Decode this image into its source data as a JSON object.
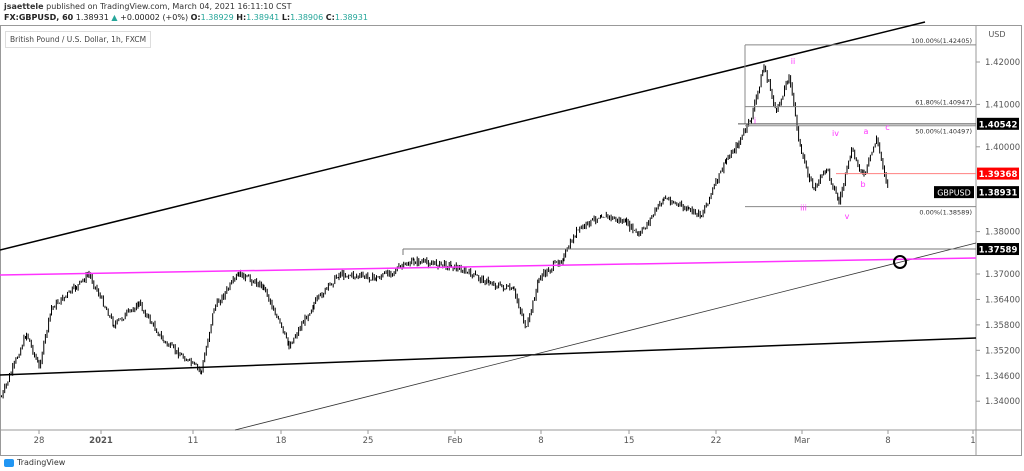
{
  "header": {
    "author": "jsaettele",
    "published": "published on TradingView.com, March 04, 2021 16:11:10 CST",
    "symbol": "FX:GBPUSD, 60",
    "last": "1.38931",
    "change": "+0.00002 (+0%)",
    "o_label": "O:",
    "o": "1.38929",
    "h_label": "H:",
    "h": "1.38941",
    "l_label": "L:",
    "l": "1.38906",
    "c_label": "C:",
    "c": "1.38931"
  },
  "legend": "British Pound / U.S. Dollar, 1h, FXCM",
  "footer": "TradingView",
  "colors": {
    "up": "#26a69a",
    "magenta": "#ff33ff",
    "red": "#ff0000",
    "line": "#000000"
  },
  "chart_data": {
    "type": "line",
    "title": "British Pound / U.S. Dollar, 1h, FXCM",
    "currency": "USD",
    "ylim": [
      1.336,
      1.4265
    ],
    "y_ticks": [
      "1.42000",
      "1.41000",
      "1.40000",
      "1.38000",
      "1.37000",
      "1.36400",
      "1.35800",
      "1.35200",
      "1.34600",
      "1.34000"
    ],
    "x_ticks": [
      "28",
      "2021",
      "11",
      "18",
      "25",
      "Feb",
      "8",
      "15",
      "22",
      "Mar",
      "8",
      "1"
    ],
    "series": [
      {
        "name": "GBPUSD",
        "points": [
          [
            "2020-12-25",
            1.341
          ],
          [
            "2020-12-27",
            1.356
          ],
          [
            "2020-12-28",
            1.348
          ],
          [
            "2020-12-29",
            1.362
          ],
          [
            "2020-12-31",
            1.367
          ],
          [
            "2021-01-01",
            1.37
          ],
          [
            "2021-01-03",
            1.358
          ],
          [
            "2021-01-05",
            1.363
          ],
          [
            "2021-01-07",
            1.354
          ],
          [
            "2021-01-10",
            1.347
          ],
          [
            "2021-01-11",
            1.362
          ],
          [
            "2021-01-13",
            1.37
          ],
          [
            "2021-01-15",
            1.367
          ],
          [
            "2021-01-17",
            1.353
          ],
          [
            "2021-01-19",
            1.363
          ],
          [
            "2021-01-21",
            1.37
          ],
          [
            "2021-01-24",
            1.369
          ],
          [
            "2021-01-27",
            1.373
          ],
          [
            "2021-01-30",
            1.372
          ],
          [
            "2021-02-02",
            1.368
          ],
          [
            "2021-02-04",
            1.366
          ],
          [
            "2021-02-05",
            1.357
          ],
          [
            "2021-02-06",
            1.369
          ],
          [
            "2021-02-08",
            1.374
          ],
          [
            "2021-02-09",
            1.38
          ],
          [
            "2021-02-11",
            1.384
          ],
          [
            "2021-02-13",
            1.382
          ],
          [
            "2021-02-14",
            1.379
          ],
          [
            "2021-02-16",
            1.388
          ],
          [
            "2021-02-18",
            1.385
          ],
          [
            "2021-02-19",
            1.384
          ],
          [
            "2021-02-21",
            1.397
          ],
          [
            "2021-02-22",
            1.401
          ],
          [
            "2021-02-23",
            1.407
          ],
          [
            "2021-02-24",
            1.419
          ],
          [
            "2021-02-25",
            1.408
          ],
          [
            "2021-02-26",
            1.417
          ],
          [
            "2021-02-27",
            1.398
          ],
          [
            "2021-02-28",
            1.39
          ],
          [
            "2021-03-01",
            1.395
          ],
          [
            "2021-03-02",
            1.387
          ],
          [
            "2021-03-03",
            1.399
          ],
          [
            "2021-03-04",
            1.393
          ],
          [
            "2021-03-05",
            1.402
          ],
          [
            "2021-03-06",
            1.38931
          ]
        ]
      }
    ],
    "fib_levels": [
      {
        "label": "100.00%(1.42405)",
        "price": 1.42405
      },
      {
        "label": "61.80%(1.40947)",
        "price": 1.40947
      },
      {
        "label": "50.00%(1.40497)",
        "price": 1.40497
      },
      {
        "label": "0.00%(1.38589)",
        "price": 1.38589
      }
    ],
    "price_labels": [
      {
        "text": "1.40542",
        "price": 1.40542,
        "bg": "#000000"
      },
      {
        "text": "1.39368",
        "price": 1.39368,
        "bg": "#ff0000"
      },
      {
        "text": "1.38931",
        "price": 1.38931,
        "bg": "#000000",
        "tag": "GBPUSD"
      },
      {
        "text": "1.37589",
        "price": 1.37589,
        "bg": "#000000"
      }
    ],
    "wave_labels": [
      {
        "text": "ii",
        "date": "2021-02-26",
        "price": 1.4195
      },
      {
        "text": "i",
        "date": "2021-02-24",
        "price": 1.4055
      },
      {
        "text": "iii",
        "date": "2021-02-27",
        "price": 1.385
      },
      {
        "text": "iv",
        "date": "2021-03-01",
        "price": 1.4025
      },
      {
        "text": "v",
        "date": "2021-03-02",
        "price": 1.383
      },
      {
        "text": "a",
        "date": "2021-03-04",
        "price": 1.403
      },
      {
        "text": "b",
        "date": "2021-03-04",
        "price": 1.3905
      },
      {
        "text": "c",
        "date": "2021-03-05",
        "price": 1.404
      }
    ]
  }
}
